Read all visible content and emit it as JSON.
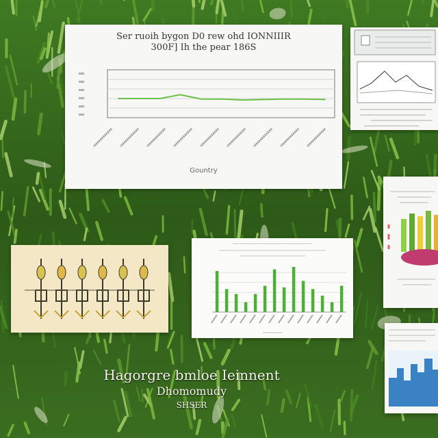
{
  "main_chart": {
    "title_line1": "Ser ruoih bygon D0 rew ohd IONNIIIR",
    "title_line2": "300F] Ih the pear 186S",
    "xlabel": "Gountry",
    "color": "#6cc04a"
  },
  "overlay": {
    "line1": "Hagorgre bmloe Ieinnent",
    "line2": "Dhomomudy",
    "line3": "SHSER"
  },
  "chart_data": [
    {
      "type": "line",
      "title": "Ser ruoih bygon D0 rew ohd IONNIIIR 300F] Ih the pear 186S",
      "xlabel": "Gountry",
      "ylabel": "",
      "grid": true,
      "series": [
        {
          "values": [
            40,
            40,
            40,
            48,
            39,
            39,
            37,
            38,
            39,
            39,
            38
          ]
        }
      ],
      "ylim": [
        0,
        100
      ]
    },
    {
      "type": "bar",
      "grid": true,
      "values": [
        50,
        28,
        22,
        12,
        22,
        32,
        52,
        30,
        55,
        38,
        28,
        20,
        12,
        32
      ]
    }
  ],
  "colors": {
    "grass_dark": "#2f5a1c",
    "grass_light": "#6aa23a",
    "bar_green": "#4caf36",
    "card_white": "#f7f8f5",
    "beige": "#f3e7c6"
  }
}
